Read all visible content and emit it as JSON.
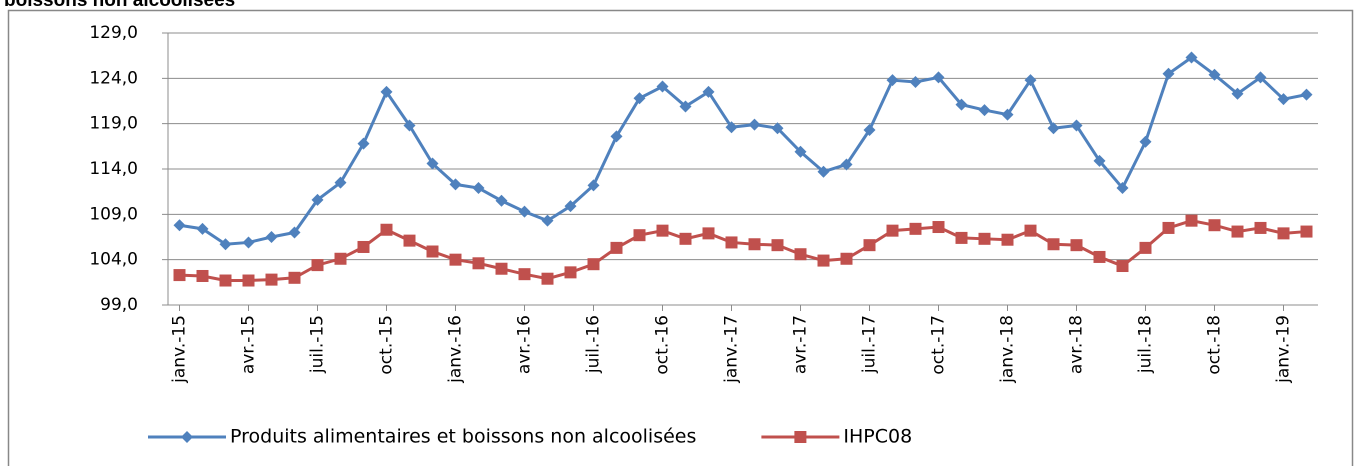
{
  "chart_data": {
    "type": "line",
    "title": "boissons non alcoolisées",
    "categories": [
      "janv.-15",
      null,
      null,
      "avr.-15",
      null,
      null,
      "juil.-15",
      null,
      null,
      "oct.-15",
      null,
      null,
      "janv.-16",
      null,
      null,
      "avr.-16",
      null,
      null,
      "juil.-16",
      null,
      null,
      "oct.-16",
      null,
      null,
      "janv.-17",
      null,
      null,
      "avr.-17",
      null,
      null,
      "juil.-17",
      null,
      null,
      "oct.-17",
      null,
      null,
      "janv.-18",
      null,
      null,
      "avr.-18",
      null,
      null,
      "juil.-18",
      null,
      null,
      "oct.-18",
      null,
      null,
      "janv.-19",
      null
    ],
    "series": [
      {
        "name": "Produits alimentaires et boissons non alcoolisées",
        "color": "#4f81bd",
        "marker": "diamond",
        "values": [
          107.8,
          107.4,
          105.7,
          105.9,
          106.5,
          107.0,
          110.6,
          112.5,
          116.8,
          122.5,
          118.8,
          114.6,
          112.3,
          111.9,
          110.5,
          109.3,
          108.3,
          109.9,
          112.2,
          117.6,
          121.8,
          123.1,
          120.9,
          122.5,
          118.6,
          118.9,
          118.5,
          115.9,
          113.7,
          114.5,
          118.3,
          123.8,
          123.6,
          124.1,
          121.1,
          120.5,
          120.0,
          123.8,
          118.5,
          118.8,
          114.9,
          111.9,
          117.0,
          124.5,
          126.3,
          124.4,
          122.3,
          124.1,
          121.7,
          122.2
        ]
      },
      {
        "name": "IHPC08",
        "color": "#c0504d",
        "marker": "square",
        "values": [
          102.3,
          102.2,
          101.7,
          101.7,
          101.8,
          102.0,
          103.4,
          104.1,
          105.4,
          107.3,
          106.1,
          104.9,
          104.0,
          103.6,
          103.0,
          102.4,
          101.9,
          102.6,
          103.5,
          105.3,
          106.7,
          107.2,
          106.3,
          106.9,
          105.9,
          105.7,
          105.6,
          104.6,
          103.9,
          104.1,
          105.6,
          107.2,
          107.4,
          107.6,
          106.4,
          106.3,
          106.2,
          107.2,
          105.7,
          105.6,
          104.3,
          103.3,
          105.3,
          107.5,
          108.3,
          107.8,
          107.1,
          107.5,
          106.9,
          107.1
        ]
      }
    ],
    "ylim": [
      99,
      129
    ],
    "yticks": [
      {
        "value": 99,
        "label": "99,0"
      },
      {
        "value": 104,
        "label": "104,0"
      },
      {
        "value": 109,
        "label": "109,0"
      },
      {
        "value": 114,
        "label": "114,0"
      },
      {
        "value": 119,
        "label": "119,0"
      },
      {
        "value": 124,
        "label": "124,0"
      },
      {
        "value": 129,
        "label": "129,0"
      }
    ],
    "grid": true,
    "legend": "bottom"
  }
}
